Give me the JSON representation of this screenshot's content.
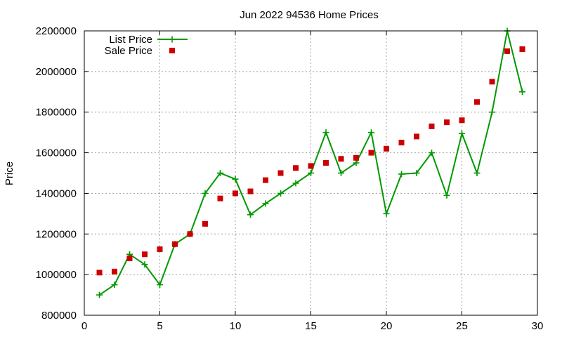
{
  "chart_data": {
    "type": "line",
    "title": "Jun 2022 94536 Home Prices",
    "xlabel": "",
    "ylabel": "Price",
    "xlim": [
      0,
      30
    ],
    "ylim": [
      800000,
      2200000
    ],
    "xticks": [
      0,
      5,
      10,
      15,
      20,
      25,
      30
    ],
    "yticks": [
      800000,
      1000000,
      1200000,
      1400000,
      1600000,
      1800000,
      2000000,
      2200000
    ],
    "grid": true,
    "legend_position": "top-left",
    "series": [
      {
        "name": "List Price",
        "kind": "line-points",
        "color": "#009900",
        "marker": "plus",
        "x": [
          1,
          2,
          3,
          4,
          5,
          6,
          7,
          8,
          9,
          10,
          11,
          12,
          13,
          14,
          15,
          16,
          17,
          18,
          19,
          20,
          21,
          22,
          23,
          24,
          25,
          26,
          27,
          28,
          29
        ],
        "y": [
          900000,
          950000,
          1100000,
          1050000,
          950000,
          1150000,
          1200000,
          1400000,
          1500000,
          1470000,
          1295000,
          1350000,
          1400000,
          1450000,
          1500000,
          1700000,
          1500000,
          1550000,
          1700000,
          1300000,
          1495000,
          1500000,
          1600000,
          1390000,
          1695000,
          1500000,
          1800000,
          2200000,
          1900000
        ]
      },
      {
        "name": "Sale Price",
        "kind": "points",
        "color": "#cc0000",
        "marker": "square",
        "x": [
          1,
          2,
          3,
          4,
          5,
          6,
          7,
          8,
          9,
          10,
          11,
          12,
          13,
          14,
          15,
          16,
          17,
          18,
          19,
          20,
          21,
          22,
          23,
          24,
          25,
          26,
          27,
          28,
          29
        ],
        "y": [
          1010000,
          1015000,
          1080000,
          1100000,
          1125000,
          1150000,
          1200000,
          1250000,
          1375000,
          1400000,
          1410000,
          1465000,
          1500000,
          1525000,
          1535000,
          1550000,
          1570000,
          1575000,
          1600000,
          1620000,
          1650000,
          1680000,
          1730000,
          1750000,
          1760000,
          1850000,
          1950000,
          2100000,
          2110000
        ]
      }
    ]
  }
}
